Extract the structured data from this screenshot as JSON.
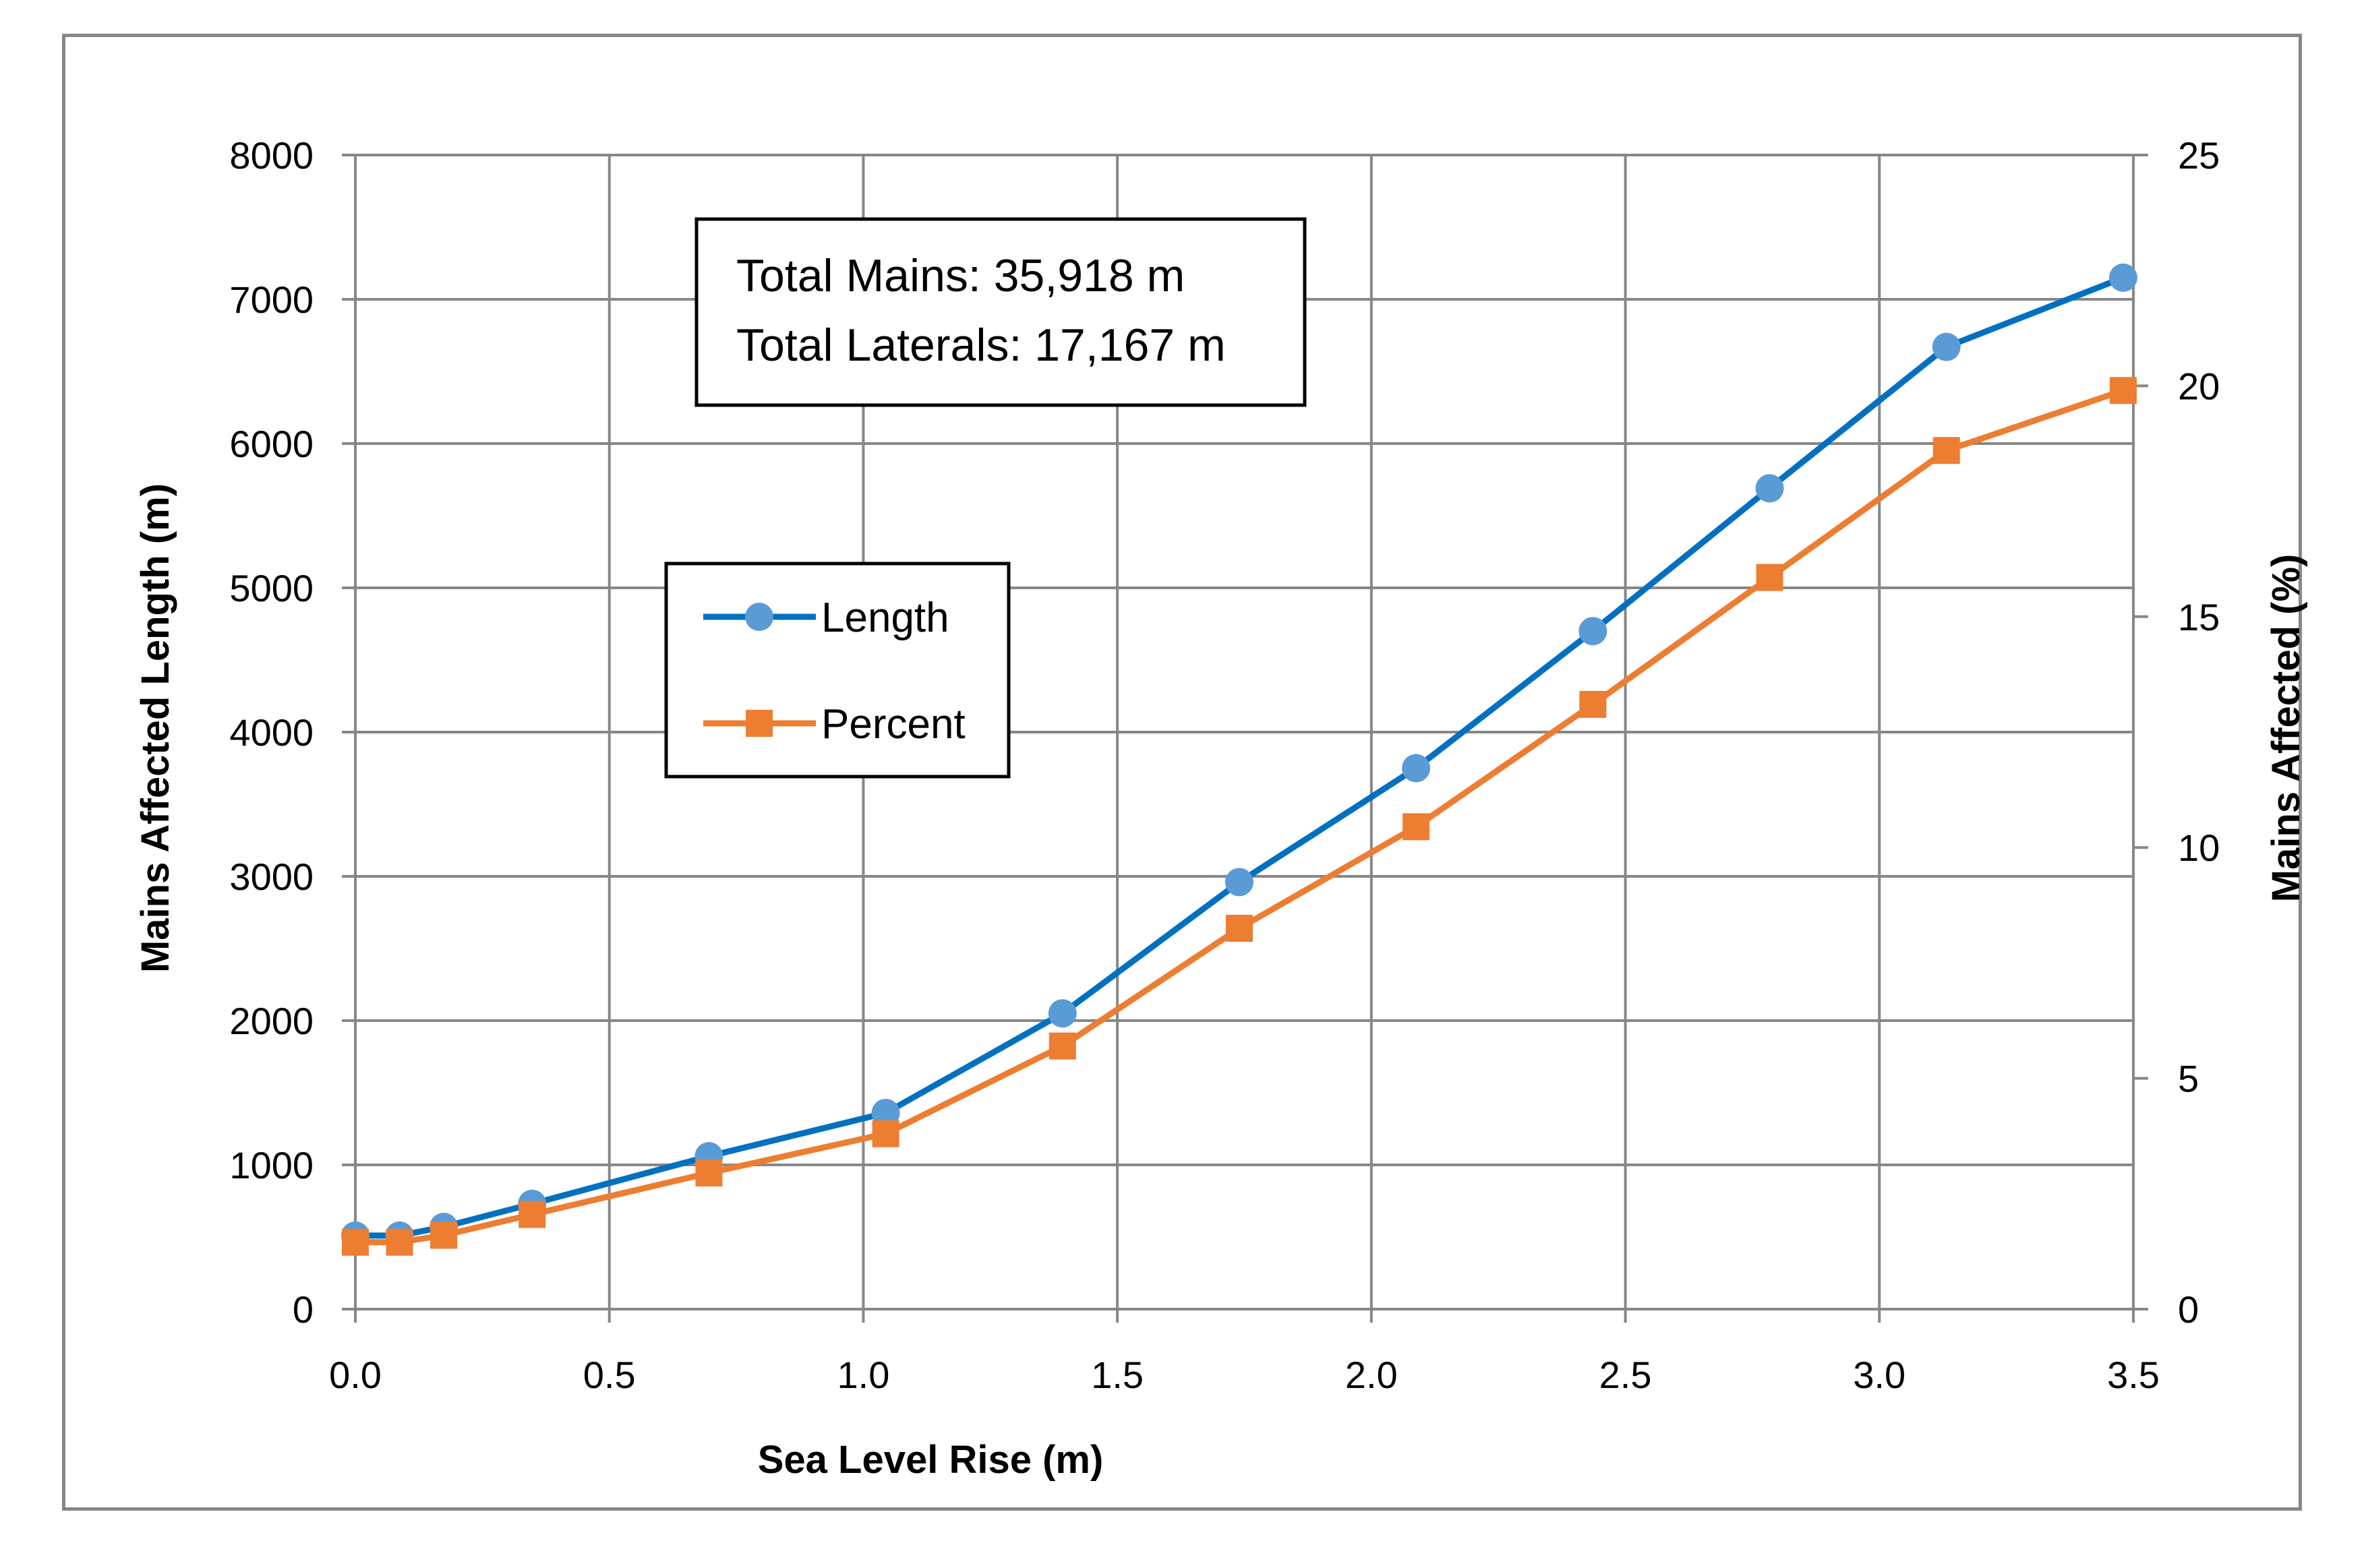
{
  "chart_data": {
    "type": "line",
    "title": "",
    "xlabel": "Sea Level Rise (m)",
    "ylabel": "Mains Affected Length (m)",
    "y2label": "Mains Affected (%)",
    "xlim": [
      0,
      3.5
    ],
    "ylim": [
      0,
      8000
    ],
    "y2lim": [
      0,
      25
    ],
    "x_ticks": [
      "0.0",
      "0.5",
      "1.0",
      "1.5",
      "2.0",
      "2.5",
      "3.0",
      "3.5"
    ],
    "y_ticks": [
      "0",
      "1000",
      "2000",
      "3000",
      "4000",
      "5000",
      "6000",
      "7000",
      "8000"
    ],
    "y2_ticks": [
      "0",
      "5",
      "10",
      "15",
      "20",
      "25"
    ],
    "grid": true,
    "legend_position": "middle-left",
    "series": [
      {
        "name": "Length",
        "axis": "left",
        "color": "#0070C0",
        "marker_color": "#5B9BD5",
        "marker": "circle",
        "x": [
          0.0,
          0.087,
          0.174,
          0.348,
          0.696,
          1.044,
          1.392,
          1.74,
          2.088,
          2.436,
          2.784,
          3.132,
          3.48
        ],
        "values": [
          510,
          510,
          570,
          730,
          1060,
          1360,
          2050,
          2960,
          3750,
          4700,
          5690,
          6670,
          7150
        ]
      },
      {
        "name": "Percent",
        "axis": "right",
        "color": "#ED7D31",
        "marker_color": "#ED7D31",
        "marker": "square",
        "x": [
          0.0,
          0.087,
          0.174,
          0.348,
          0.696,
          1.044,
          1.392,
          1.74,
          2.088,
          2.436,
          2.784,
          3.132,
          3.48
        ],
        "values": [
          1.45,
          1.45,
          1.6,
          2.05,
          2.95,
          3.8,
          5.7,
          8.25,
          10.45,
          13.1,
          15.85,
          18.6,
          19.9
        ]
      }
    ],
    "annotation": {
      "line1": "Total Mains: 35,918 m",
      "line2": "Total Laterals: 17,167 m"
    }
  }
}
